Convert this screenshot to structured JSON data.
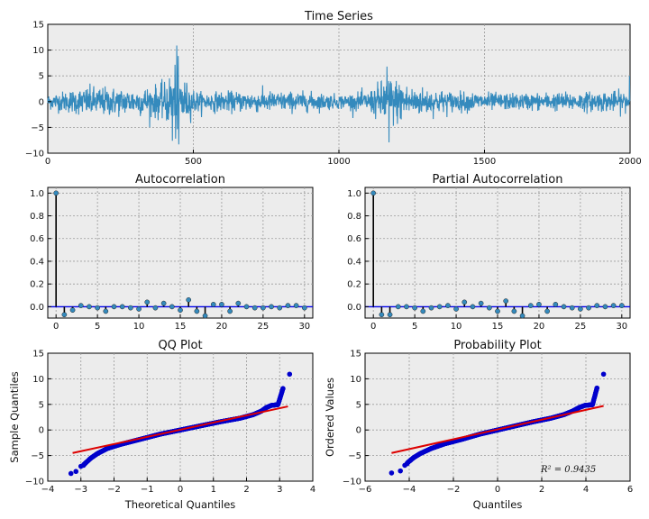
{
  "chart_data": [
    {
      "id": "ts",
      "type": "line",
      "title": "Time Series",
      "xlabel": "",
      "ylabel": "",
      "xlim": [
        0,
        2000
      ],
      "ylim": [
        -10,
        15
      ],
      "xticks": [
        "0",
        "500",
        "1000",
        "1500",
        "2000"
      ],
      "yticks": [
        "−10",
        "−5",
        "0",
        "5",
        "10",
        "15"
      ],
      "grid": true,
      "line_color": "#348abd",
      "n_points": 2000,
      "volatility_envelope": [
        {
          "x": 0,
          "amp": 1.3
        },
        {
          "x": 150,
          "amp": 2.6
        },
        {
          "x": 300,
          "amp": 2.2
        },
        {
          "x": 400,
          "amp": 3.0
        },
        {
          "x": 440,
          "amp": 6.5
        },
        {
          "x": 480,
          "amp": 3.0
        },
        {
          "x": 520,
          "amp": 1.6
        },
        {
          "x": 700,
          "amp": 1.8
        },
        {
          "x": 900,
          "amp": 1.6
        },
        {
          "x": 1000,
          "amp": 1.2
        },
        {
          "x": 1100,
          "amp": 1.7
        },
        {
          "x": 1170,
          "amp": 4.5
        },
        {
          "x": 1250,
          "amp": 2.6
        },
        {
          "x": 1400,
          "amp": 1.7
        },
        {
          "x": 1600,
          "amp": 1.4
        },
        {
          "x": 1800,
          "amp": 1.6
        },
        {
          "x": 2000,
          "amp": 1.8
        }
      ],
      "extremes": [
        {
          "x": 443,
          "y": 10.9
        },
        {
          "x": 450,
          "y": -8.3
        },
        {
          "x": 428,
          "y": -7.6
        },
        {
          "x": 1165,
          "y": 6.8
        },
        {
          "x": 1172,
          "y": -7.9
        },
        {
          "x": 1998,
          "y": 5.0
        }
      ]
    },
    {
      "id": "acf",
      "type": "stem",
      "title": "Autocorrelation",
      "xlim": [
        -1,
        31
      ],
      "ylim": [
        -0.1,
        1.05
      ],
      "xticks": [
        "0",
        "5",
        "10",
        "15",
        "20",
        "25",
        "30"
      ],
      "yticks": [
        "0.0",
        "0.2",
        "0.4",
        "0.6",
        "0.8",
        "1.0"
      ],
      "grid": true,
      "lags": [
        0,
        1,
        2,
        3,
        4,
        5,
        6,
        7,
        8,
        9,
        10,
        11,
        12,
        13,
        14,
        15,
        16,
        17,
        18,
        19,
        20,
        21,
        22,
        23,
        24,
        25,
        26,
        27,
        28,
        29,
        30
      ],
      "values": [
        1.0,
        -0.07,
        -0.03,
        0.01,
        0.0,
        -0.01,
        -0.04,
        0.0,
        0.0,
        -0.01,
        -0.02,
        0.04,
        -0.01,
        0.03,
        0.0,
        -0.03,
        0.06,
        -0.04,
        -0.08,
        0.02,
        0.02,
        -0.04,
        0.03,
        0.0,
        -0.01,
        -0.01,
        0.0,
        -0.01,
        0.01,
        0.01,
        -0.01
      ]
    },
    {
      "id": "pacf",
      "type": "stem",
      "title": "Partial Autocorrelation",
      "xlim": [
        -1,
        31
      ],
      "ylim": [
        -0.1,
        1.05
      ],
      "xticks": [
        "0",
        "5",
        "10",
        "15",
        "20",
        "25",
        "30"
      ],
      "yticks": [
        "0.0",
        "0.2",
        "0.4",
        "0.6",
        "0.8",
        "1.0"
      ],
      "grid": true,
      "lags": [
        0,
        1,
        2,
        3,
        4,
        5,
        6,
        7,
        8,
        9,
        10,
        11,
        12,
        13,
        14,
        15,
        16,
        17,
        18,
        19,
        20,
        21,
        22,
        23,
        24,
        25,
        26,
        27,
        28,
        29,
        30
      ],
      "values": [
        1.0,
        -0.07,
        -0.07,
        0.0,
        0.0,
        -0.01,
        -0.04,
        -0.01,
        0.0,
        0.01,
        -0.02,
        0.04,
        0.0,
        0.03,
        -0.01,
        -0.04,
        0.05,
        -0.04,
        -0.08,
        0.01,
        0.02,
        -0.04,
        0.02,
        0.0,
        -0.01,
        -0.02,
        -0.01,
        0.01,
        0.0,
        0.01,
        0.01
      ]
    },
    {
      "id": "qq",
      "type": "scatter",
      "title": "QQ Plot",
      "xlabel": "Theoretical Quantiles",
      "ylabel": "Sample Quantiles",
      "xlim": [
        -4,
        4
      ],
      "ylim": [
        -10,
        15
      ],
      "xticks": [
        "−4",
        "−3",
        "−2",
        "−1",
        "0",
        "1",
        "2",
        "3",
        "4"
      ],
      "yticks": [
        "−10",
        "−5",
        "0",
        "5",
        "10",
        "15"
      ],
      "grid": true,
      "fit_line": {
        "x": [
          -3.25,
          3.25
        ],
        "y": [
          -4.5,
          4.6
        ]
      },
      "points_curve": [
        [
          -3.3,
          -8.5
        ],
        [
          -3.1,
          -8.0
        ],
        [
          -2.95,
          -7.0
        ],
        [
          -2.85,
          -6.4
        ],
        [
          -2.7,
          -5.5
        ],
        [
          -2.5,
          -4.6
        ],
        [
          -2.2,
          -3.6
        ],
        [
          -1.8,
          -2.8
        ],
        [
          -1.2,
          -1.8
        ],
        [
          -0.6,
          -0.8
        ],
        [
          0.0,
          0.0
        ],
        [
          0.6,
          0.8
        ],
        [
          1.2,
          1.6
        ],
        [
          1.8,
          2.3
        ],
        [
          2.2,
          3.0
        ],
        [
          2.45,
          3.7
        ],
        [
          2.6,
          4.4
        ],
        [
          2.75,
          4.8
        ],
        [
          2.95,
          4.95
        ],
        [
          3.1,
          8.1
        ],
        [
          3.3,
          10.9
        ]
      ],
      "n_points": 2000,
      "tail_points": [
        [
          -3.3,
          -8.5
        ],
        [
          -3.15,
          -8.1
        ],
        [
          -3.0,
          -7.1
        ],
        [
          -2.92,
          -6.9
        ],
        [
          3.1,
          8.1
        ],
        [
          3.3,
          10.9
        ]
      ]
    },
    {
      "id": "prob",
      "type": "scatter",
      "title": "Probability Plot",
      "xlabel": "Quantiles",
      "ylabel": "Ordered Values",
      "xlim": [
        -6,
        6
      ],
      "ylim": [
        -10,
        15
      ],
      "xticks": [
        "−6",
        "−4",
        "−2",
        "0",
        "2",
        "4",
        "6"
      ],
      "yticks": [
        "−10",
        "−5",
        "0",
        "5",
        "10",
        "15"
      ],
      "grid": true,
      "annotation": "R² = 0.9435",
      "fit_line": {
        "x": [
          -4.8,
          4.8
        ],
        "y": [
          -4.5,
          4.7
        ]
      },
      "points_curve": [
        [
          -4.8,
          -8.4
        ],
        [
          -4.4,
          -8.0
        ],
        [
          -4.2,
          -7.0
        ],
        [
          -4.05,
          -6.3
        ],
        [
          -3.8,
          -5.4
        ],
        [
          -3.5,
          -4.6
        ],
        [
          -3.0,
          -3.6
        ],
        [
          -2.4,
          -2.7
        ],
        [
          -1.6,
          -1.8
        ],
        [
          -0.8,
          -0.8
        ],
        [
          0.0,
          0.0
        ],
        [
          0.8,
          0.8
        ],
        [
          1.6,
          1.6
        ],
        [
          2.4,
          2.3
        ],
        [
          3.0,
          3.0
        ],
        [
          3.4,
          3.7
        ],
        [
          3.7,
          4.4
        ],
        [
          3.95,
          4.8
        ],
        [
          4.3,
          4.95
        ],
        [
          4.5,
          8.2
        ],
        [
          4.8,
          10.9
        ]
      ],
      "n_points": 2000,
      "tail_points": [
        [
          -4.8,
          -8.4
        ],
        [
          -4.4,
          -8.0
        ],
        [
          -4.2,
          -6.9
        ],
        [
          -4.1,
          -6.6
        ],
        [
          4.5,
          8.2
        ],
        [
          4.8,
          10.9
        ]
      ]
    }
  ],
  "colors": {
    "axes_bg": "#ececec",
    "ts_line": "#348abd",
    "stem_marker": "#348abd",
    "stem_line": "#000000",
    "zero_line": "#0000ee",
    "scatter": "#0000cc",
    "fit_line": "#dd0000"
  }
}
